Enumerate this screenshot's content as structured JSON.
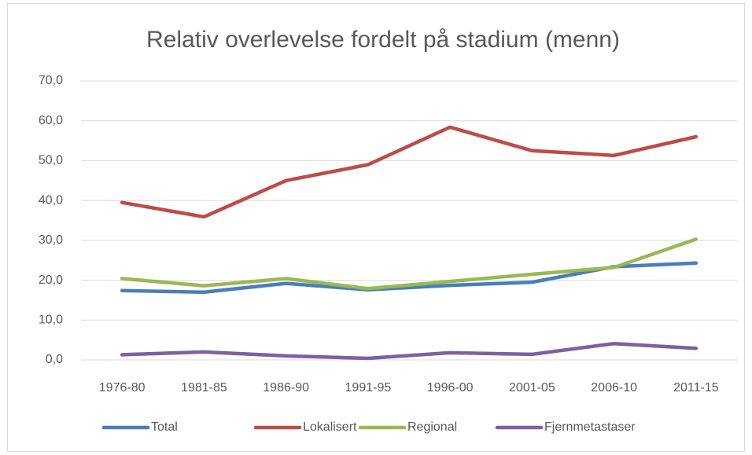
{
  "chart_data": {
    "type": "line",
    "title": "Relativ overlevelse fordelt på stadium (menn)",
    "categories": [
      "1976-80",
      "1981-85",
      "1986-90",
      "1991-95",
      "1996-00",
      "2001-05",
      "2006-10",
      "2011-15"
    ],
    "series": [
      {
        "name": "Total",
        "color": "#4a7ebb",
        "values": [
          17.4,
          17.0,
          19.2,
          17.6,
          18.7,
          19.5,
          23.4,
          24.3
        ]
      },
      {
        "name": "Lokalisert",
        "color": "#be4b48",
        "values": [
          39.5,
          35.9,
          45.0,
          49.0,
          58.4,
          52.5,
          51.3,
          56.0
        ]
      },
      {
        "name": "Regional",
        "color": "#98b954",
        "values": [
          20.4,
          18.6,
          20.4,
          17.9,
          19.7,
          21.5,
          23.2,
          30.3
        ]
      },
      {
        "name": "Fjernmetastaser",
        "color": "#7d60a0",
        "values": [
          1.3,
          2.0,
          1.0,
          0.4,
          1.8,
          1.4,
          4.1,
          2.9
        ]
      }
    ],
    "ylim": [
      0,
      70
    ],
    "yticks": [
      {
        "value": 0,
        "label": "0,0"
      },
      {
        "value": 10,
        "label": "10,0"
      },
      {
        "value": 20,
        "label": "20,0"
      },
      {
        "value": 30,
        "label": "30,0"
      },
      {
        "value": 40,
        "label": "40,0"
      },
      {
        "value": 50,
        "label": "50,0"
      },
      {
        "value": 60,
        "label": "60,0"
      },
      {
        "value": 70,
        "label": "70,0"
      }
    ],
    "grid": true,
    "legend": "bottom"
  }
}
